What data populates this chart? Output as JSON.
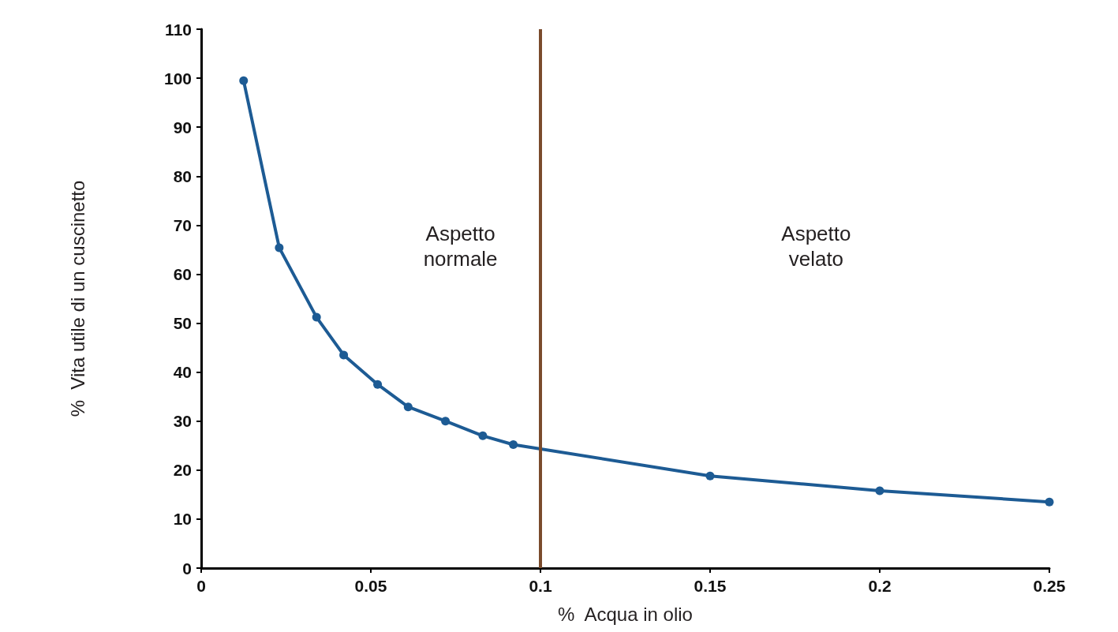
{
  "chart_data": {
    "type": "line",
    "xlabel": "%  Acqua in olio",
    "ylabel": "%  Vita utile di un cuscinetto",
    "x": [
      0.0125,
      0.023,
      0.034,
      0.042,
      0.052,
      0.061,
      0.072,
      0.083,
      0.092,
      0.15,
      0.2,
      0.25
    ],
    "series": [
      {
        "color": "#1d5b94",
        "values": [
          99.5,
          65.4,
          51.2,
          43.5,
          37.5,
          32.9,
          30.0,
          27.0,
          25.2,
          18.8,
          15.8,
          13.5
        ]
      }
    ],
    "xlim": [
      0,
      0.25
    ],
    "xticks": [
      0,
      0.05,
      0.1,
      0.15,
      0.2,
      0.25
    ],
    "ylim": [
      0,
      110
    ],
    "yticks": [
      0,
      10,
      20,
      30,
      40,
      50,
      60,
      70,
      80,
      90,
      100,
      110
    ],
    "ref_lines": [
      {
        "axis": "x",
        "value": 0.1,
        "color": "#7a4b2c"
      }
    ],
    "annotations": [
      "Aspetto\nnormale",
      "Aspetto\nvelato"
    ],
    "marker": "circle",
    "line_style": "solid",
    "grid": false
  }
}
